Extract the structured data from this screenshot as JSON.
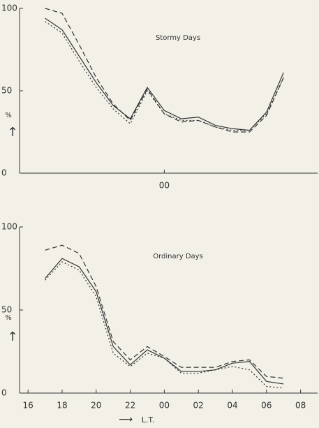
{
  "chart_data": [
    {
      "type": "line",
      "title": "Stormy Days",
      "x": [
        17,
        18,
        19,
        20,
        21,
        22,
        23,
        24,
        25,
        26,
        27,
        28,
        29,
        30,
        31
      ],
      "xlim": [
        15.5,
        33
      ],
      "xticks": [
        {
          "value": 24,
          "label": "00"
        }
      ],
      "ylim": [
        0,
        100
      ],
      "yticks": [
        0,
        50,
        100
      ],
      "ylabel": "%",
      "series": [
        {
          "color": "#333333",
          "style": "solid",
          "values": [
            94,
            87,
            71,
            55,
            41,
            33,
            52,
            38,
            33,
            34,
            29,
            27,
            26,
            37,
            61
          ]
        },
        {
          "color": "#333333",
          "style": "dashed",
          "values": [
            100,
            97,
            78,
            58,
            42,
            32,
            51,
            36,
            31,
            32,
            28,
            25,
            25,
            35,
            58
          ]
        },
        {
          "color": "#333333",
          "style": "dotted",
          "values": [
            92,
            85,
            68,
            52,
            39,
            30,
            50,
            36,
            32,
            32,
            28,
            26,
            26,
            36,
            58
          ]
        }
      ]
    },
    {
      "type": "line",
      "title": "Ordinary Days",
      "x": [
        17,
        18,
        19,
        20,
        21,
        22,
        23,
        24,
        25,
        26,
        27,
        28,
        29,
        30,
        31
      ],
      "xlim": [
        15.5,
        33
      ],
      "xticks": [
        16,
        18,
        20,
        22,
        {
          "value": 24,
          "label": "00"
        },
        {
          "value": 26,
          "label": "02"
        },
        {
          "value": 28,
          "label": "04"
        },
        {
          "value": 30,
          "label": "06"
        },
        {
          "value": 32,
          "label": "08"
        }
      ],
      "xlabel": "L.T.",
      "ylim": [
        0,
        100
      ],
      "yticks": [
        0,
        50,
        100
      ],
      "ylabel": "%",
      "series": [
        {
          "color": "#333333",
          "style": "solid",
          "values": [
            69,
            81,
            76,
            61,
            28,
            17,
            26,
            21,
            13,
            13,
            14,
            18,
            19,
            7,
            5.5
          ]
        },
        {
          "color": "#333333",
          "style": "dashed",
          "values": [
            86,
            89,
            84,
            64,
            31,
            20,
            28,
            22,
            15.5,
            15.5,
            15.5,
            19,
            20,
            10,
            9
          ]
        },
        {
          "color": "#333333",
          "style": "dotted",
          "values": [
            68,
            79,
            74,
            58,
            24,
            16,
            24,
            21,
            12,
            12,
            14,
            16,
            14,
            4,
            3
          ]
        }
      ]
    }
  ]
}
